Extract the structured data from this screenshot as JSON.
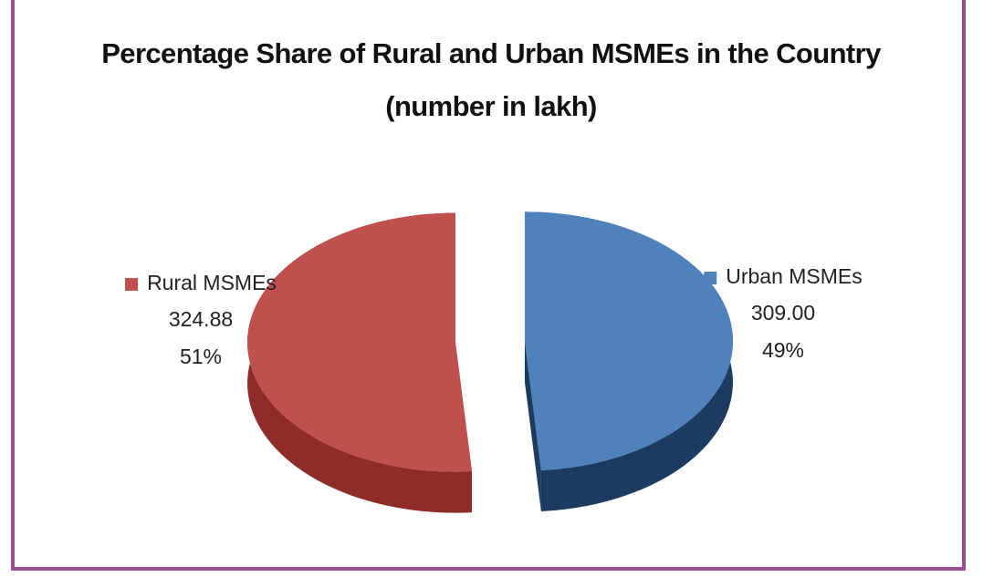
{
  "chart_data": {
    "type": "pie",
    "title": "Percentage Share of Rural and Urban MSMEs in the Country (number in lakh)",
    "categories": [
      "Rural MSMEs",
      "Urban MSMEs"
    ],
    "values": [
      324.88,
      309.0
    ],
    "value_labels": [
      "324.88",
      "309.00"
    ],
    "percentages": [
      51,
      49
    ],
    "percentage_labels": [
      "51%",
      "49%"
    ],
    "colors": [
      "#c0504d",
      "#4f81bd"
    ],
    "side_colors": [
      "#8e2c29",
      "#1d3b60"
    ]
  }
}
